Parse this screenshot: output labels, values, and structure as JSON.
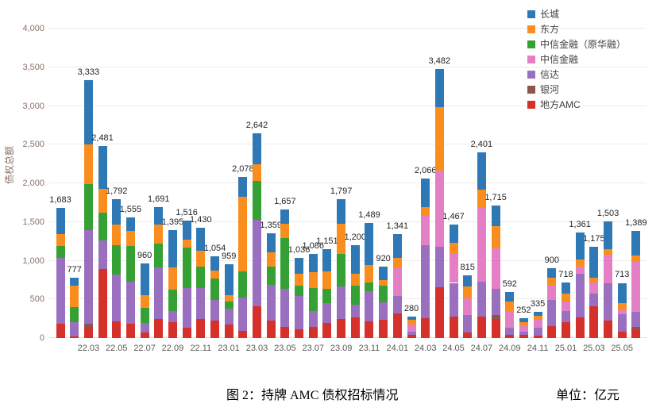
{
  "chart_data": {
    "type": "bar",
    "subtype": "stacked-vertical",
    "caption": "图 2：持牌 AMC 债权招标情况",
    "unit_label": "单位：亿元",
    "ylabel": "债权总额",
    "ylim": [
      0,
      4000
    ],
    "yticks": [
      0,
      500,
      1000,
      1500,
      2000,
      2500,
      3000,
      3500,
      4000
    ],
    "grid": true,
    "legend_position": "top-right",
    "legend": [
      {
        "label": "长城",
        "color": "#2e79b5"
      },
      {
        "label": "东方",
        "color": "#f98e1f"
      },
      {
        "label": "中信金融（原华融）",
        "color": "#35a135"
      },
      {
        "label": "中信金融",
        "color": "#e57fc5"
      },
      {
        "label": "信达",
        "color": "#9a6fbf"
      },
      {
        "label": "银河",
        "color": "#8c564b"
      },
      {
        "label": "地方AMC",
        "color": "#d6302b"
      }
    ],
    "stack_order_bottom_to_top": [
      "地方AMC",
      "银河",
      "信达",
      "中信金融",
      "中信金融（原华融）",
      "东方",
      "长城"
    ],
    "x_ticks": [
      "22.03",
      "22.05",
      "22.07",
      "22.09",
      "22.11",
      "23.01",
      "23.03",
      "23.05",
      "23.07",
      "23.09",
      "23.11",
      "24.01",
      "24.03",
      "24.05",
      "24.07",
      "24.09",
      "24.11",
      "25.01",
      "25.03",
      "25.05"
    ],
    "bars": [
      {
        "month": "22.01",
        "total": 1683,
        "segments": [
          [
            "地方AMC",
            180
          ],
          [
            "信达",
            861
          ],
          [
            "中信金融（原华融）",
            152
          ],
          [
            "东方",
            152
          ],
          [
            "长城",
            338
          ]
        ]
      },
      {
        "month": "22.02",
        "total": 777,
        "segments": [
          [
            "地方AMC",
            17
          ],
          [
            "信达",
            187
          ],
          [
            "中信金融（原华融）",
            194
          ],
          [
            "东方",
            280
          ],
          [
            "长城",
            99
          ]
        ]
      },
      {
        "month": "22.03",
        "total": 3333,
        "segments": [
          [
            "地方AMC",
            145
          ],
          [
            "银河",
            35
          ],
          [
            "信达",
            1210
          ],
          [
            "中信金融（原华融）",
            605
          ],
          [
            "东方",
            510
          ],
          [
            "长城",
            828
          ]
        ]
      },
      {
        "month": "22.04",
        "total": 2481,
        "segments": [
          [
            "地方AMC",
            892
          ],
          [
            "信达",
            367
          ],
          [
            "中信金融（原华融）",
            357
          ],
          [
            "东方",
            309
          ],
          [
            "长城",
            556
          ]
        ]
      },
      {
        "month": "22.05",
        "total": 1792,
        "segments": [
          [
            "地方AMC",
            211
          ],
          [
            "信达",
            610
          ],
          [
            "中信金融（原华融）",
            378
          ],
          [
            "东方",
            268
          ],
          [
            "长城",
            325
          ]
        ]
      },
      {
        "month": "22.06",
        "total": 1555,
        "segments": [
          [
            "地方AMC",
            182
          ],
          [
            "信达",
            549
          ],
          [
            "中信金融（原华融）",
            462
          ],
          [
            "东方",
            196
          ],
          [
            "长城",
            166
          ]
        ]
      },
      {
        "month": "22.07",
        "total": 960,
        "segments": [
          [
            "地方AMC",
            69
          ],
          [
            "信达",
            129
          ],
          [
            "中信金融（原华融）",
            189
          ],
          [
            "东方",
            172
          ],
          [
            "长城",
            401
          ]
        ]
      },
      {
        "month": "22.08",
        "total": 1691,
        "segments": [
          [
            "地方AMC",
            243
          ],
          [
            "信达",
            673
          ],
          [
            "中信金融（原华融）",
            308
          ],
          [
            "东方",
            246
          ],
          [
            "长城",
            221
          ]
        ]
      },
      {
        "month": "22.09",
        "total": 1395,
        "segments": [
          [
            "地方AMC",
            207
          ],
          [
            "信达",
            143
          ],
          [
            "中信金融（原华融）",
            273
          ],
          [
            "东方",
            288
          ],
          [
            "长城",
            484
          ]
        ]
      },
      {
        "month": "22.10",
        "total": 1516,
        "segments": [
          [
            "地方AMC",
            129
          ],
          [
            "信达",
            515
          ],
          [
            "中信金融（原华融）",
            528
          ],
          [
            "东方",
            102
          ],
          [
            "长城",
            242
          ]
        ]
      },
      {
        "month": "22.11",
        "total": 1430,
        "segments": [
          [
            "地方AMC",
            246
          ],
          [
            "信达",
            399
          ],
          [
            "中信金融（原华融）",
            278
          ],
          [
            "东方",
            203
          ],
          [
            "长城",
            304
          ]
        ]
      },
      {
        "month": "22.12",
        "total": 1054,
        "segments": [
          [
            "地方AMC",
            230
          ],
          [
            "信达",
            259
          ],
          [
            "中信金融（原华融）",
            280
          ],
          [
            "东方",
            107
          ],
          [
            "长城",
            178
          ]
        ]
      },
      {
        "month": "23.01",
        "total": 959,
        "segments": [
          [
            "地方AMC",
            171
          ],
          [
            "信达",
            205
          ],
          [
            "中信金融（原华融）",
            96
          ],
          [
            "东方",
            85
          ],
          [
            "长城",
            402
          ]
        ]
      },
      {
        "month": "23.02",
        "total": 2078,
        "segments": [
          [
            "地方AMC",
            93
          ],
          [
            "信达",
            435
          ],
          [
            "中信金融（原华融）",
            333
          ],
          [
            "东方",
            967
          ],
          [
            "长城",
            250
          ]
        ]
      },
      {
        "month": "23.03",
        "total": 2642,
        "segments": [
          [
            "地方AMC",
            414
          ],
          [
            "信达",
            1110
          ],
          [
            "中信金融（原华融）",
            510
          ],
          [
            "东方",
            212
          ],
          [
            "长城",
            396
          ]
        ]
      },
      {
        "month": "23.04",
        "total": 1359,
        "segments": [
          [
            "地方AMC",
            230
          ],
          [
            "信达",
            456
          ],
          [
            "中信金融（原华融）",
            236
          ],
          [
            "东方",
            185
          ],
          [
            "长城",
            252
          ]
        ]
      },
      {
        "month": "23.05",
        "total": 1657,
        "segments": [
          [
            "地方AMC",
            144
          ],
          [
            "信达",
            488
          ],
          [
            "中信金融（原华融）",
            656
          ],
          [
            "东方",
            185
          ],
          [
            "长城",
            184
          ]
        ]
      },
      {
        "month": "23.06",
        "total": 1036,
        "segments": [
          [
            "地方AMC",
            113
          ],
          [
            "信达",
            428
          ],
          [
            "中信金融（原华融）",
            136
          ],
          [
            "东方",
            154
          ],
          [
            "长城",
            205
          ]
        ]
      },
      {
        "month": "23.07",
        "total": 1086,
        "segments": [
          [
            "地方AMC",
            147
          ],
          [
            "信达",
            205
          ],
          [
            "中信金融（原华融）",
            291
          ],
          [
            "东方",
            205
          ],
          [
            "长城",
            238
          ]
        ]
      },
      {
        "month": "23.08",
        "total": 1151,
        "segments": [
          [
            "地方AMC",
            197
          ],
          [
            "信达",
            256
          ],
          [
            "中信金融（原华融）",
            187
          ],
          [
            "东方",
            221
          ],
          [
            "长城",
            290
          ]
        ]
      },
      {
        "month": "23.09",
        "total": 1797,
        "segments": [
          [
            "地方AMC",
            246
          ],
          [
            "信达",
            422
          ],
          [
            "中信金融（原华融）",
            422
          ],
          [
            "东方",
            387
          ],
          [
            "长城",
            320
          ]
        ]
      },
      {
        "month": "23.10",
        "total": 1200,
        "segments": [
          [
            "地方AMC",
            265
          ],
          [
            "信达",
            170
          ],
          [
            "中信金融（原华融）",
            238
          ],
          [
            "东方",
            153
          ],
          [
            "长城",
            374
          ]
        ]
      },
      {
        "month": "23.11",
        "total": 1489,
        "segments": [
          [
            "地方AMC",
            213
          ],
          [
            "信达",
            389
          ],
          [
            "中信金融（原华融）",
            119
          ],
          [
            "东方",
            221
          ],
          [
            "长城",
            547
          ]
        ]
      },
      {
        "month": "23.12",
        "total": 920,
        "segments": [
          [
            "地方AMC",
            234
          ],
          [
            "信达",
            223
          ],
          [
            "中信金融（原华融）",
            223
          ],
          [
            "东方",
            69
          ],
          [
            "长城",
            171
          ]
        ]
      },
      {
        "month": "24.01",
        "total": 1341,
        "segments": [
          [
            "地方AMC",
            313
          ],
          [
            "信达",
            235
          ],
          [
            "中信金融",
            354
          ],
          [
            "东方",
            136
          ],
          [
            "长城",
            303
          ]
        ]
      },
      {
        "month": "24.02",
        "total": 280,
        "segments": [
          [
            "地方AMC",
            38
          ],
          [
            "信达",
            41
          ],
          [
            "中信金融",
            92
          ],
          [
            "东方",
            62
          ],
          [
            "长城",
            47
          ]
        ]
      },
      {
        "month": "24.03",
        "total": 2066,
        "segments": [
          [
            "地方AMC",
            261
          ],
          [
            "信达",
            935
          ],
          [
            "中信金融",
            385
          ],
          [
            "东方",
            116
          ],
          [
            "长城",
            369
          ]
        ]
      },
      {
        "month": "24.04",
        "total": 3482,
        "segments": [
          [
            "地方AMC",
            661
          ],
          [
            "信达",
            517
          ],
          [
            "中信金融",
            985
          ],
          [
            "东方",
            819
          ],
          [
            "长城",
            500
          ]
        ]
      },
      {
        "month": "24.05",
        "total": 1467,
        "segments": [
          [
            "地方AMC",
            278
          ],
          [
            "信达",
            435
          ],
          [
            "中信金融",
            386
          ],
          [
            "东方",
            134
          ],
          [
            "长城",
            234
          ]
        ]
      },
      {
        "month": "24.06",
        "total": 815,
        "segments": [
          [
            "地方AMC",
            77
          ],
          [
            "信达",
            218
          ],
          [
            "中信金融",
            218
          ],
          [
            "东方",
            151
          ],
          [
            "长城",
            151
          ]
        ]
      },
      {
        "month": "24.07",
        "total": 2401,
        "segments": [
          [
            "地方AMC",
            278
          ],
          [
            "信达",
            452
          ],
          [
            "中信金融",
            954
          ],
          [
            "东方",
            234
          ],
          [
            "长城",
            483
          ]
        ]
      },
      {
        "month": "24.08",
        "total": 1715,
        "segments": [
          [
            "地方AMC",
            246
          ],
          [
            "银河",
            51
          ],
          [
            "信达",
            338
          ],
          [
            "中信金融",
            523
          ],
          [
            "东方",
            287
          ],
          [
            "长城",
            270
          ]
        ]
      },
      {
        "month": "24.09",
        "total": 592,
        "segments": [
          [
            "地方AMC",
            45
          ],
          [
            "信达",
            89
          ],
          [
            "中信金融",
            211
          ],
          [
            "东方",
            124
          ],
          [
            "长城",
            123
          ]
        ]
      },
      {
        "month": "24.10",
        "total": 252,
        "segments": [
          [
            "地方AMC",
            38
          ],
          [
            "信达",
            41
          ],
          [
            "中信金融",
            85
          ],
          [
            "东方",
            44
          ],
          [
            "长城",
            44
          ]
        ]
      },
      {
        "month": "24.11",
        "total": 335,
        "segments": [
          [
            "地方AMC",
            27
          ],
          [
            "信达",
            103
          ],
          [
            "中信金融",
            103
          ],
          [
            "东方",
            51
          ],
          [
            "长城",
            51
          ]
        ]
      },
      {
        "month": "24.12",
        "total": 900,
        "segments": [
          [
            "地方AMC",
            154
          ],
          [
            "信达",
            335
          ],
          [
            "中信金融",
            188
          ],
          [
            "东方",
            103
          ],
          [
            "长城",
            120
          ]
        ]
      },
      {
        "month": "25.01",
        "total": 718,
        "segments": [
          [
            "地方AMC",
            205
          ],
          [
            "信达",
            147
          ],
          [
            "中信金融",
            120
          ],
          [
            "东方",
            103
          ],
          [
            "长城",
            143
          ]
        ]
      },
      {
        "month": "25.02",
        "total": 1361,
        "segments": [
          [
            "地方AMC",
            266
          ],
          [
            "信达",
            568
          ],
          [
            "中信金融",
            85
          ],
          [
            "东方",
            95
          ],
          [
            "长城",
            347
          ]
        ]
      },
      {
        "month": "25.03",
        "total": 1175,
        "segments": [
          [
            "地方AMC",
            412
          ],
          [
            "信达",
            165
          ],
          [
            "中信金融",
            143
          ],
          [
            "东方",
            62
          ],
          [
            "长城",
            393
          ]
        ]
      },
      {
        "month": "25.04",
        "total": 1503,
        "segments": [
          [
            "地方AMC",
            221
          ],
          [
            "信达",
            484
          ],
          [
            "中信金融",
            374
          ],
          [
            "东方",
            67
          ],
          [
            "长城",
            357
          ]
        ]
      },
      {
        "month": "25.05",
        "total": 713,
        "segments": [
          [
            "地方AMC",
            81
          ],
          [
            "信达",
            228
          ],
          [
            "中信金融",
            52
          ],
          [
            "东方",
            88
          ],
          [
            "长城",
            264
          ]
        ]
      },
      {
        "month": "25.06",
        "total": 1389,
        "segments": [
          [
            "地方AMC",
            113
          ],
          [
            "银河",
            27
          ],
          [
            "信达",
            194
          ],
          [
            "中信金融",
            647
          ],
          [
            "东方",
            85
          ],
          [
            "长城",
            323
          ]
        ]
      }
    ]
  }
}
